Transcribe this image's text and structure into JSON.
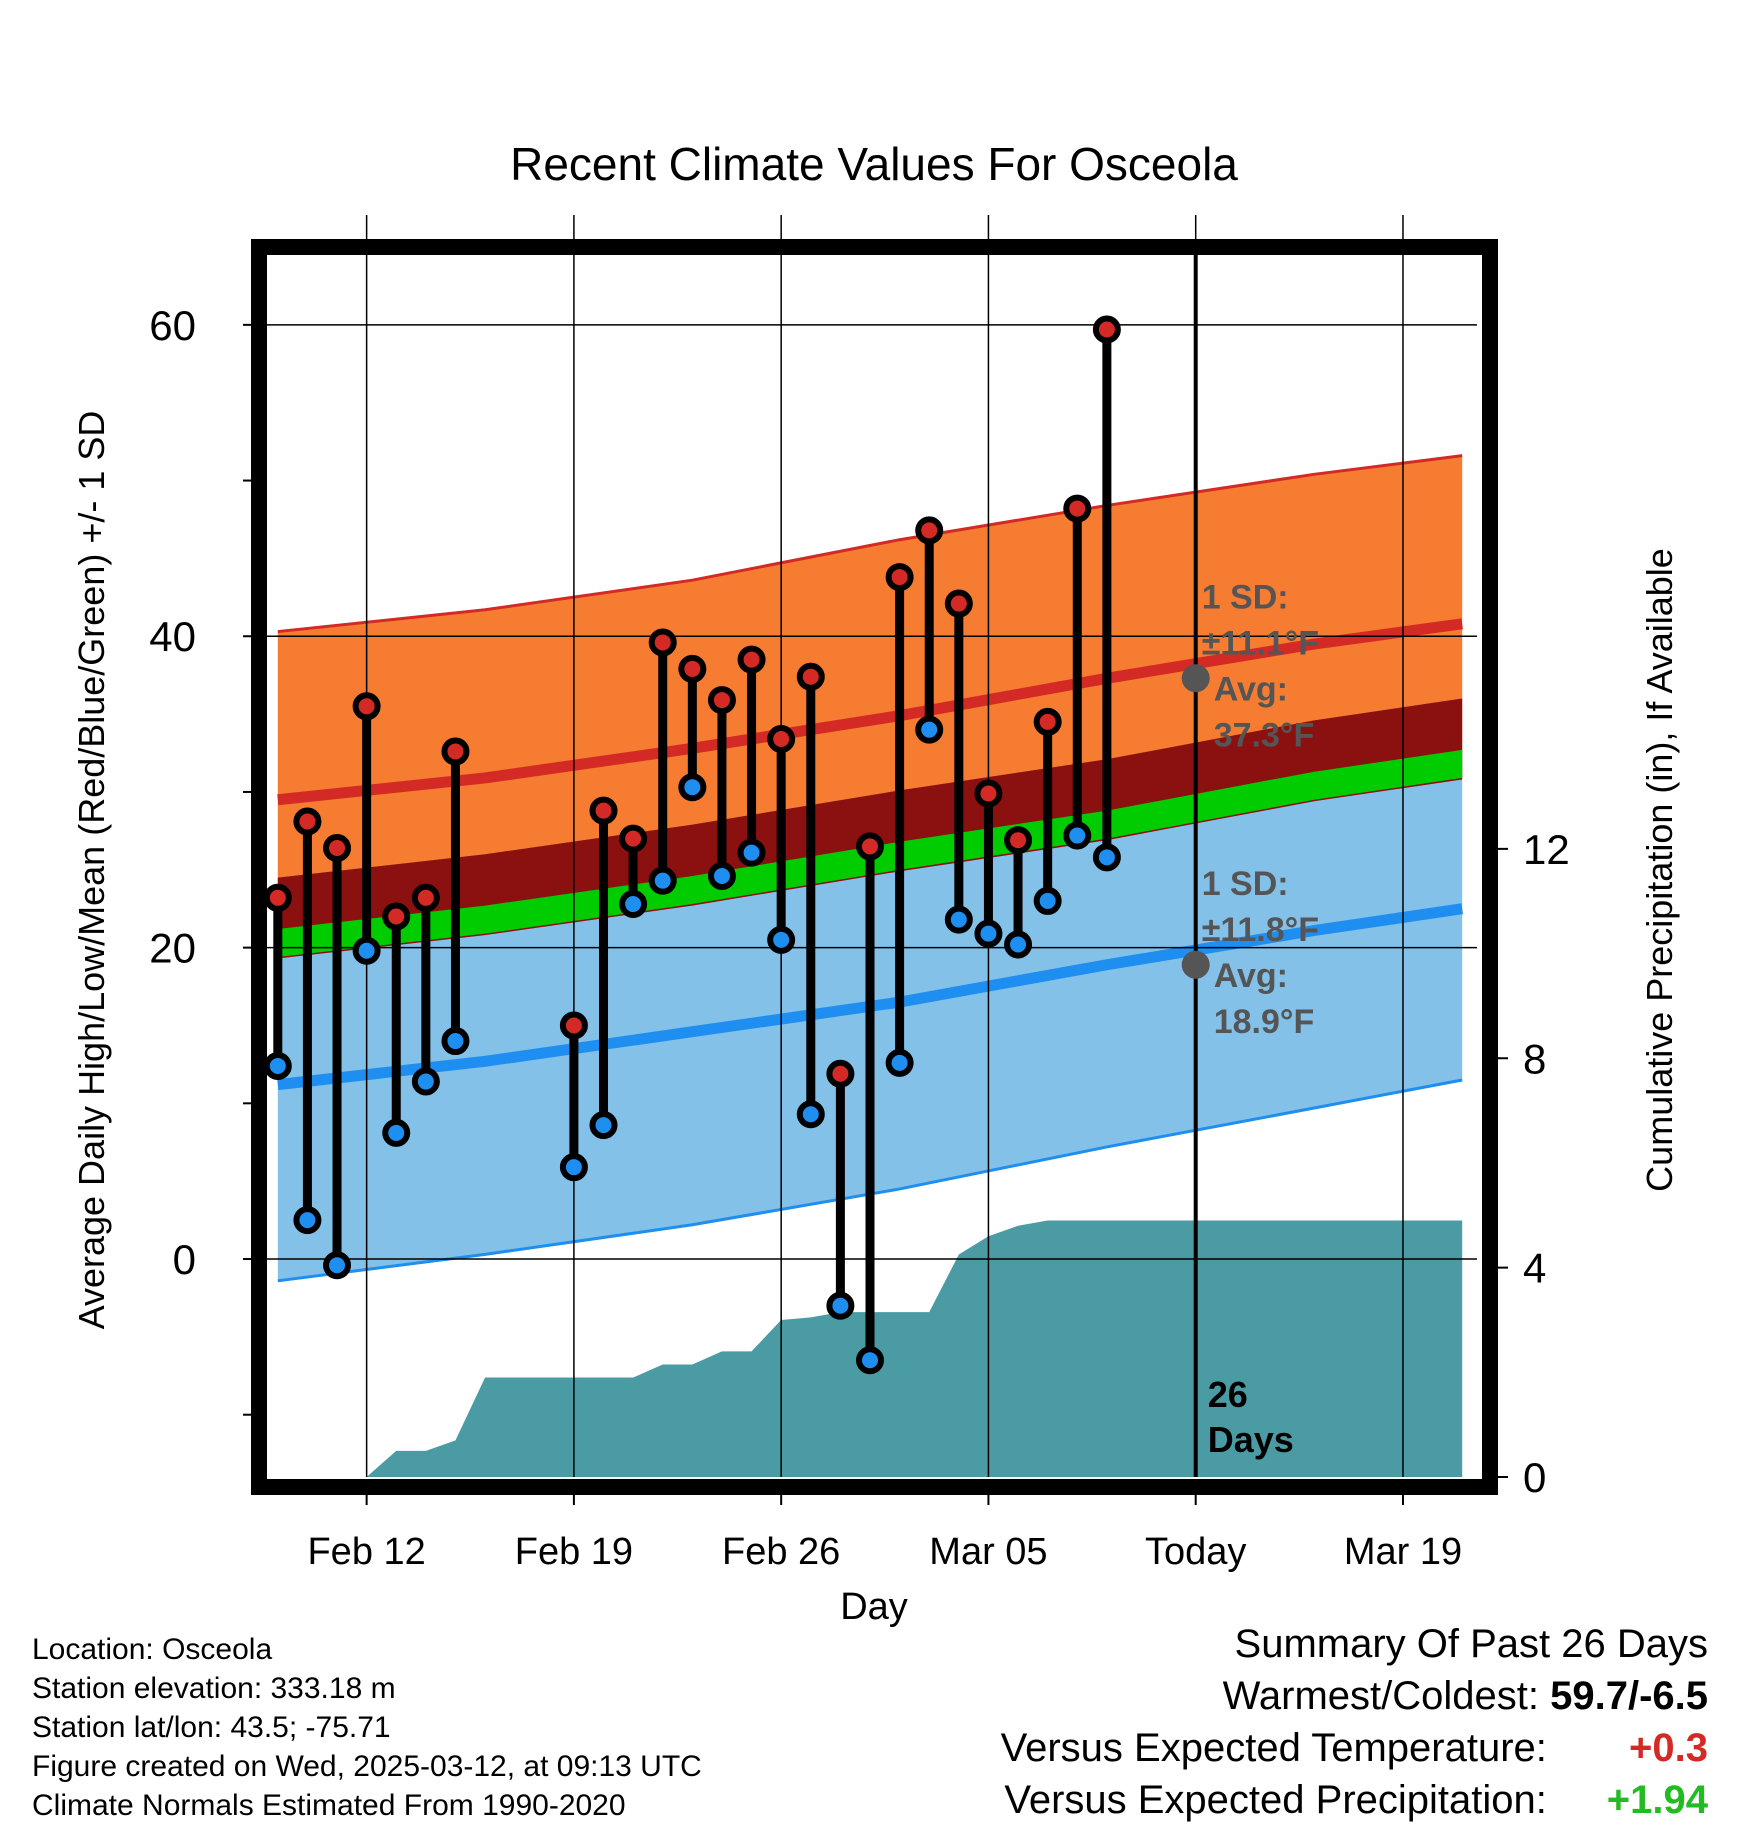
{
  "chart_data": {
    "type": "line",
    "title": "Recent Climate Values For Osceola",
    "xlabel": "Day",
    "ylabel": "Average Daily High/Low/Mean (Red/Blue/Green) +/- 1 SD",
    "y2label": "Cumulative Precipitation (in), If Available",
    "x_tick_labels": [
      "Feb 12",
      "Feb 19",
      "Feb 26",
      "Mar 05",
      "Today",
      "Mar 19"
    ],
    "x_tick_days": [
      12,
      19,
      26,
      33,
      40,
      47
    ],
    "xlim": [
      8.5,
      49.5
    ],
    "ylim": [
      -14,
      65
    ],
    "y_ticks": [
      0,
      20,
      40,
      60
    ],
    "y2lim": [
      0,
      23.5
    ],
    "y2_ticks": [
      0,
      4,
      8,
      12
    ],
    "grid": true,
    "today_day": 40,
    "today_label_line1": "26",
    "today_label_line2": "Days",
    "normals": {
      "x": [
        9,
        16,
        23,
        30,
        37,
        44,
        49
      ],
      "high_mean": [
        29.5,
        30.9,
        32.8,
        34.9,
        37.3,
        39.5,
        40.8
      ],
      "high_upper": [
        40.3,
        41.7,
        43.6,
        46.2,
        48.4,
        50.4,
        51.6
      ],
      "low_mean": [
        11.2,
        12.7,
        14.6,
        16.5,
        18.9,
        21.1,
        22.5
      ],
      "low_lower": [
        -1.4,
        0.3,
        2.2,
        4.5,
        7.2,
        9.7,
        11.5
      ],
      "mean": [
        20.3,
        21.8,
        23.7,
        25.9,
        27.9,
        30.4,
        31.8
      ],
      "high_sd": 11.1,
      "low_sd": 11.8
    },
    "annotations": {
      "high_sd_line1": "1 SD:",
      "high_sd_line2": "±11.1°F",
      "high_avg_line1": "Avg:",
      "high_avg_line2": "37.3°F",
      "low_sd_line1": "1 SD:",
      "low_sd_line2": "±11.8°F",
      "low_avg_line1": "Avg:",
      "low_avg_line2": "18.9°F"
    },
    "observations": {
      "day": [
        9,
        10,
        11,
        12,
        13,
        14,
        15,
        16,
        17,
        18,
        19,
        20,
        21,
        22,
        23,
        24,
        25,
        26,
        27,
        28,
        29,
        30,
        31,
        32,
        33,
        34,
        35,
        36,
        37,
        38,
        39
      ],
      "high": [
        23.2,
        28.1,
        26.4,
        35.5,
        22.0,
        23.2,
        32.6,
        null,
        null,
        null,
        15.0,
        28.8,
        27.0,
        39.6,
        37.9,
        35.9,
        38.5,
        33.4,
        37.4,
        11.9,
        26.5,
        43.8,
        46.8,
        42.1,
        29.9,
        26.9,
        34.5,
        48.2,
        59.7,
        null,
        null
      ],
      "low": [
        12.4,
        2.5,
        -0.4,
        19.8,
        8.1,
        11.4,
        14.0,
        null,
        null,
        null,
        5.9,
        8.6,
        22.8,
        24.3,
        30.3,
        24.6,
        26.1,
        20.5,
        9.3,
        -3.0,
        -6.5,
        12.6,
        34.0,
        21.8,
        20.9,
        20.2,
        23.0,
        27.2,
        25.8,
        null,
        null
      ]
    },
    "precipitation": {
      "day": [
        9,
        10,
        11,
        12,
        13,
        14,
        15,
        16,
        17,
        18,
        19,
        20,
        21,
        22,
        23,
        24,
        25,
        26,
        27,
        28,
        29,
        30,
        31,
        32,
        33,
        34,
        35,
        36,
        37,
        38,
        39,
        40,
        49
      ],
      "cumulative_in": [
        0,
        0,
        0,
        0,
        0.5,
        0.5,
        0.7,
        1.9,
        1.9,
        1.9,
        1.9,
        1.9,
        1.9,
        2.15,
        2.15,
        2.4,
        2.4,
        3.0,
        3.05,
        3.15,
        3.15,
        3.15,
        3.15,
        4.25,
        4.6,
        4.8,
        4.9,
        4.9,
        4.9,
        4.9,
        4.9,
        4.9,
        4.9
      ]
    },
    "colors": {
      "high_band": "#f57c30",
      "high_line": "#d42a25",
      "low_band": "#83c1e8",
      "low_line": "#1e8ef0",
      "mean_band_dark": "#8b1010",
      "mean_band_green": "#00cc00",
      "precip": "#4a9ba3",
      "high_marker": "#d42a25",
      "low_marker": "#1e8ef0",
      "annotation": "#555555"
    }
  },
  "footer": {
    "location": "Location: Osceola",
    "elevation": "Station elevation: 333.18 m",
    "latlon": "Station lat/lon: 43.5; -75.71",
    "created": "Figure created on Wed, 2025-03-12, at 09:13 UTC",
    "normals": "Climate Normals Estimated From 1990-2020"
  },
  "summary": {
    "heading": "Summary Of Past 26 Days",
    "warmest_label": "Warmest/Coldest:",
    "warmest_value": "59.7/-6.5",
    "temp_label": "Versus Expected Temperature:",
    "temp_value": "+0.3",
    "temp_color": "#d42a25",
    "precip_label": "Versus Expected Precipitation:",
    "precip_value": "+1.94",
    "precip_color": "#22bb22"
  }
}
